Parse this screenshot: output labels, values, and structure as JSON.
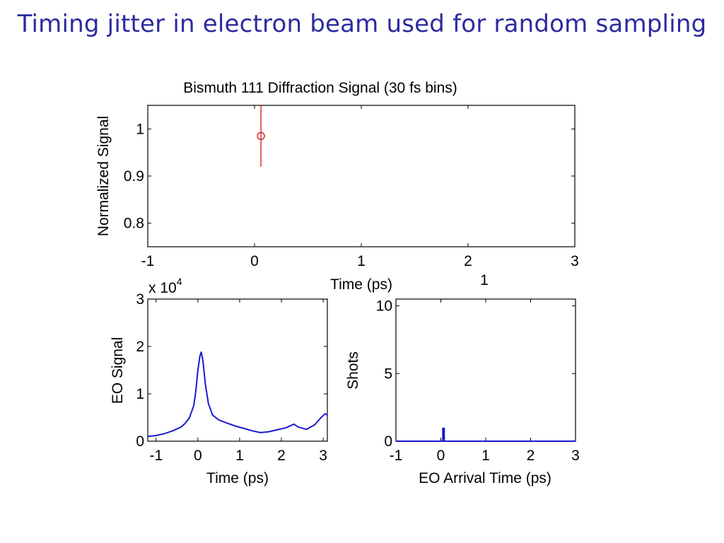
{
  "slide": {
    "title": "Timing jitter in electron beam used for random sampling"
  },
  "chart_data": [
    {
      "id": "diffraction",
      "type": "scatter",
      "title": "Bismuth 111 Diffraction Signal (30 fs bins)",
      "xlabel": "Time (ps)",
      "ylabel": "Normalized Signal",
      "xlim": [
        -1,
        3
      ],
      "ylim": [
        0.75,
        1.05
      ],
      "xticks": [
        -1,
        0,
        1,
        2,
        3
      ],
      "xtick_labels": [
        "-1",
        "0",
        "1",
        "2",
        "3"
      ],
      "yticks": [
        0.8,
        0.9,
        1.0
      ],
      "ytick_labels": [
        "0.8",
        "0.9",
        "1"
      ],
      "marker": "circle",
      "color": "#d42020",
      "points": [
        {
          "x": 0.06,
          "y": 0.985,
          "err_low": 0.92,
          "err_high": 1.05
        }
      ],
      "annotation": "1",
      "grid": false
    },
    {
      "id": "eo-signal",
      "type": "line",
      "xlabel": "Time (ps)",
      "ylabel": "EO Signal",
      "y_exponent_label": "x 10",
      "y_exponent": "4",
      "xlim": [
        -1.2,
        3.1
      ],
      "ylim": [
        0,
        3
      ],
      "xticks": [
        -1,
        0,
        1,
        2,
        3
      ],
      "xtick_labels": [
        "-1",
        "0",
        "1",
        "2",
        "3"
      ],
      "yticks": [
        0,
        1,
        2,
        3
      ],
      "ytick_labels": [
        "0",
        "1",
        "2",
        "3"
      ],
      "color": "#1a1ad0",
      "x": [
        -1.2,
        -1.0,
        -0.8,
        -0.6,
        -0.4,
        -0.3,
        -0.2,
        -0.1,
        -0.05,
        0.0,
        0.05,
        0.08,
        0.12,
        0.18,
        0.25,
        0.35,
        0.5,
        0.7,
        0.9,
        1.1,
        1.3,
        1.5,
        1.7,
        1.9,
        2.1,
        2.2,
        2.3,
        2.4,
        2.6,
        2.8,
        2.95,
        3.05,
        3.1
      ],
      "y": [
        0.1,
        0.12,
        0.16,
        0.22,
        0.3,
        0.38,
        0.5,
        0.75,
        1.05,
        1.5,
        1.8,
        1.88,
        1.7,
        1.2,
        0.8,
        0.55,
        0.45,
        0.38,
        0.32,
        0.27,
        0.22,
        0.18,
        0.2,
        0.24,
        0.28,
        0.32,
        0.36,
        0.3,
        0.25,
        0.35,
        0.5,
        0.58,
        0.55
      ],
      "grid": false
    },
    {
      "id": "eo-arrival",
      "type": "bar",
      "xlabel": "EO Arrival Time (ps)",
      "ylabel": "Shots",
      "xlim": [
        -1,
        3
      ],
      "ylim": [
        0,
        10.5
      ],
      "xticks": [
        -1,
        0,
        1,
        2,
        3
      ],
      "xtick_labels": [
        "-1",
        "0",
        "1",
        "2",
        "3"
      ],
      "yticks": [
        0,
        5,
        10
      ],
      "ytick_labels": [
        "0",
        "5",
        "10"
      ],
      "color": "#1a1ad0",
      "bars": [
        {
          "x": 0.06,
          "value": 1
        }
      ],
      "grid": false
    }
  ]
}
